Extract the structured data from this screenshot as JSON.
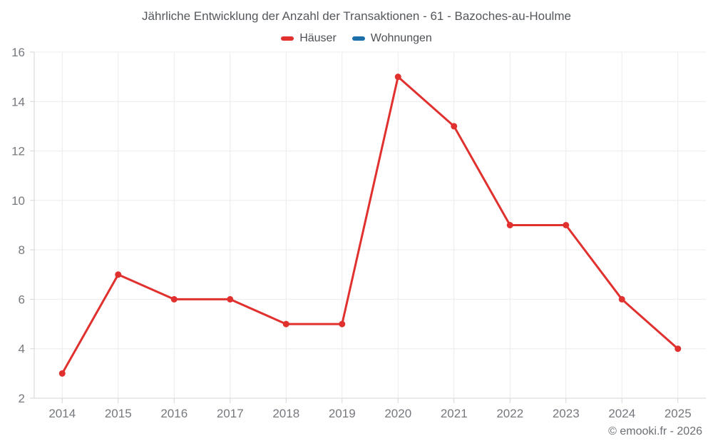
{
  "page": {
    "copyright": "© emooki.fr - 2026"
  },
  "legend": {
    "items": [
      {
        "label": "Häuser",
        "color": "#e0312f"
      },
      {
        "label": "Wohnungen",
        "color": "#1c6fa8"
      }
    ]
  },
  "chart_data": {
    "type": "line",
    "title": "Jährliche Entwicklung der Anzahl der Transaktionen - 61 - Bazoches-au-Houlme",
    "categories": [
      "2014",
      "2015",
      "2016",
      "2017",
      "2018",
      "2019",
      "2020",
      "2021",
      "2022",
      "2023",
      "2024",
      "2025"
    ],
    "series": [
      {
        "name": "Häuser",
        "color": "#e0312f",
        "values": [
          3,
          7,
          6,
          6,
          5,
          5,
          15,
          13,
          9,
          9,
          6,
          4
        ]
      },
      {
        "name": "Wohnungen",
        "color": "#1c6fa8",
        "values": []
      }
    ],
    "xlabel": "",
    "ylabel": "",
    "ylim": [
      2,
      16
    ],
    "y_ticks": [
      2,
      4,
      6,
      8,
      10,
      12,
      14,
      16
    ],
    "grid": true,
    "legend_position": "top",
    "colors": {
      "grid": "#ececec",
      "axis": "#d6d6d6",
      "tick_label": "#75787d",
      "title": "#54585c",
      "legend_text": "#4d5156",
      "footer_text": "#6b6e73"
    }
  }
}
